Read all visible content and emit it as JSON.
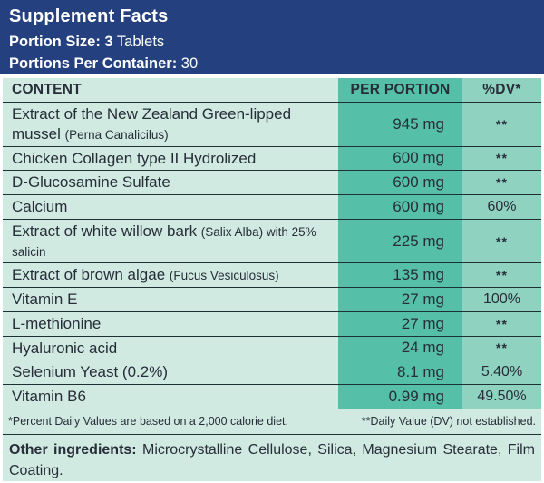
{
  "header": {
    "title": "Supplement Facts",
    "portion_size_bold": "Portion Size: 3",
    "portion_size_rest": " Tablets",
    "portions_bold": "Portions Per Container:",
    "portions_rest": " 30"
  },
  "table": {
    "columns": [
      "CONTENT",
      "PER PORTION",
      "%DV*"
    ],
    "rows": [
      {
        "name": [
          {
            "text": "Extract of the New Zealand Green-lipped mussel ",
            "small": false
          },
          {
            "text": "(Perna Canalicilus)",
            "small": true
          }
        ],
        "amount": "945 mg",
        "dv": "**"
      },
      {
        "name": [
          {
            "text": "Chicken Collagen type II Hydrolized",
            "small": false
          }
        ],
        "amount": "600 mg",
        "dv": "**"
      },
      {
        "name": [
          {
            "text": "D-Glucosamine Sulfate",
            "small": false
          }
        ],
        "amount": "600 mg",
        "dv": "**"
      },
      {
        "name": [
          {
            "text": "Calcium",
            "small": false
          }
        ],
        "amount": "600 mg",
        "dv": "60%"
      },
      {
        "name": [
          {
            "text": "Extract of white willow bark ",
            "small": false
          },
          {
            "text": "(Salix Alba) with 25% salicin",
            "small": true
          }
        ],
        "amount": "225 mg",
        "dv": "**"
      },
      {
        "name": [
          {
            "text": "Extract of brown algae ",
            "small": false
          },
          {
            "text": "(Fucus Vesiculosus)",
            "small": true
          }
        ],
        "amount": "135 mg",
        "dv": "**"
      },
      {
        "name": [
          {
            "text": "Vitamin E",
            "small": false
          }
        ],
        "amount": "27 mg",
        "dv": "100%"
      },
      {
        "name": [
          {
            "text": "L-methionine",
            "small": false
          }
        ],
        "amount": "27 mg",
        "dv": "**"
      },
      {
        "name": [
          {
            "text": "Hyaluronic acid",
            "small": false
          }
        ],
        "amount": "24 mg",
        "dv": "**"
      },
      {
        "name": [
          {
            "text": "Selenium Yeast (0.2%)",
            "small": false
          }
        ],
        "amount": "8.1 mg",
        "dv": "5.40%"
      },
      {
        "name": [
          {
            "text": "Vitamin B6",
            "small": false
          }
        ],
        "amount": "0.99 mg",
        "dv": "49.50%"
      }
    ]
  },
  "footnotes": {
    "left": "*Percent Daily Values are based on a 2,000 calorie diet.",
    "right": "**Daily Value (DV) not established."
  },
  "other_ingredients": {
    "bold": "Other ingredients:",
    "rest": " Microcrystalline Cellulose, Silica, Magnesium Stearate, Film Coating."
  },
  "colors": {
    "navy": "#24407e",
    "mint": "#d1eae1",
    "teal": "#55bfa7",
    "light_teal": "#8fd2c0",
    "line": "#1d3033",
    "text": "#272d39"
  }
}
